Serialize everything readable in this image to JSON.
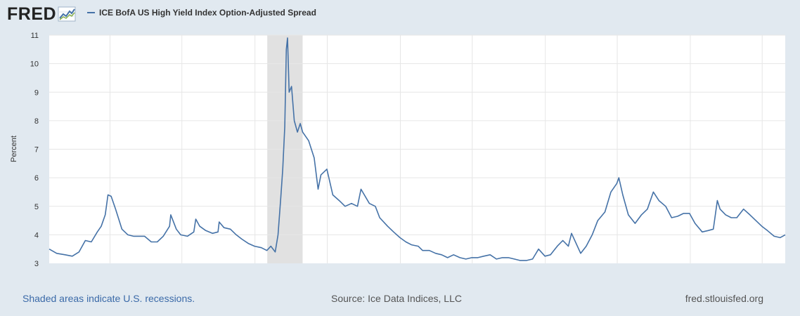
{
  "brand": {
    "logo_text": "FRED"
  },
  "footer": {
    "recession_note": "Shaded areas indicate U.S. recessions.",
    "source": "Source: Ice Data Indices, LLC",
    "site": "fred.stlouisfed.org"
  },
  "colors": {
    "line": "#4572a7",
    "recession": "#e1e1e1",
    "grid": "#e6e6e6",
    "background": "#e1e9f0"
  },
  "chart_data": {
    "type": "line",
    "title": "",
    "ylabel": "Percent",
    "xlabel": "",
    "ylim": [
      3,
      11
    ],
    "yticks": [
      3,
      4,
      5,
      6,
      7,
      8,
      9,
      10,
      11
    ],
    "xlim": [
      "2018-08-01",
      "2023-08-28"
    ],
    "xticks": [
      "2019-01",
      "2019-07",
      "2020-01",
      "2020-07",
      "2021-01",
      "2021-07",
      "2022-01",
      "2022-07",
      "2023-01",
      "2023-07"
    ],
    "grid": true,
    "legend_position": "top-left",
    "recessions": [
      [
        "2020-02-01",
        "2020-04-30"
      ]
    ],
    "series": [
      {
        "name": "ICE BofA US High Yield Index Option-Adjusted Spread",
        "x": [
          "2018-08-01",
          "2018-08-20",
          "2018-09-10",
          "2018-09-28",
          "2018-10-15",
          "2018-10-31",
          "2018-11-15",
          "2018-11-30",
          "2018-12-10",
          "2018-12-20",
          "2018-12-27",
          "2019-01-04",
          "2019-01-15",
          "2019-01-31",
          "2019-02-15",
          "2019-03-01",
          "2019-03-15",
          "2019-03-29",
          "2019-04-15",
          "2019-04-30",
          "2019-05-15",
          "2019-05-31",
          "2019-06-03",
          "2019-06-17",
          "2019-06-28",
          "2019-07-15",
          "2019-07-31",
          "2019-08-05",
          "2019-08-15",
          "2019-08-30",
          "2019-09-16",
          "2019-09-30",
          "2019-10-03",
          "2019-10-15",
          "2019-10-31",
          "2019-11-15",
          "2019-11-29",
          "2019-12-15",
          "2019-12-31",
          "2020-01-17",
          "2020-01-31",
          "2020-02-10",
          "2020-02-21",
          "2020-02-28",
          "2020-03-06",
          "2020-03-11",
          "2020-03-16",
          "2020-03-20",
          "2020-03-23",
          "2020-03-27",
          "2020-04-02",
          "2020-04-09",
          "2020-04-17",
          "2020-04-24",
          "2020-04-30",
          "2020-05-15",
          "2020-05-29",
          "2020-06-08",
          "2020-06-15",
          "2020-06-30",
          "2020-07-15",
          "2020-07-31",
          "2020-08-15",
          "2020-08-31",
          "2020-09-15",
          "2020-09-24",
          "2020-10-15",
          "2020-10-30",
          "2020-11-10",
          "2020-11-30",
          "2020-12-15",
          "2020-12-31",
          "2021-01-15",
          "2021-01-29",
          "2021-02-15",
          "2021-02-26",
          "2021-03-15",
          "2021-03-31",
          "2021-04-15",
          "2021-04-30",
          "2021-05-15",
          "2021-05-31",
          "2021-06-15",
          "2021-06-30",
          "2021-07-15",
          "2021-07-30",
          "2021-08-15",
          "2021-08-31",
          "2021-09-15",
          "2021-09-30",
          "2021-10-15",
          "2021-10-29",
          "2021-11-15",
          "2021-11-30",
          "2021-12-15",
          "2021-12-31",
          "2022-01-14",
          "2022-01-31",
          "2022-02-14",
          "2022-02-28",
          "2022-03-08",
          "2022-03-31",
          "2022-04-14",
          "2022-04-29",
          "2022-05-13",
          "2022-05-31",
          "2022-06-15",
          "2022-06-30",
          "2022-07-05",
          "2022-07-15",
          "2022-07-29",
          "2022-08-15",
          "2022-08-31",
          "2022-09-15",
          "2022-09-30",
          "2022-10-14",
          "2022-10-31",
          "2022-11-15",
          "2022-11-30",
          "2022-12-15",
          "2022-12-30",
          "2023-01-13",
          "2023-01-31",
          "2023-02-15",
          "2023-02-28",
          "2023-03-10",
          "2023-03-17",
          "2023-03-31",
          "2023-04-14",
          "2023-04-28",
          "2023-05-15",
          "2023-05-31",
          "2023-06-15",
          "2023-06-30",
          "2023-07-14",
          "2023-07-31",
          "2023-08-15",
          "2023-08-28"
        ],
        "y": [
          3.5,
          3.35,
          3.3,
          3.25,
          3.4,
          3.8,
          3.75,
          4.1,
          4.3,
          4.7,
          5.4,
          5.35,
          4.9,
          4.2,
          4.0,
          3.95,
          3.95,
          3.95,
          3.75,
          3.75,
          3.95,
          4.3,
          4.7,
          4.2,
          4.0,
          3.95,
          4.1,
          4.55,
          4.3,
          4.15,
          4.05,
          4.1,
          4.45,
          4.25,
          4.2,
          4.0,
          3.85,
          3.7,
          3.6,
          3.55,
          3.45,
          3.6,
          3.4,
          4.0,
          5.3,
          6.3,
          7.8,
          10.5,
          10.9,
          9.0,
          9.2,
          8.0,
          7.6,
          7.9,
          7.6,
          7.3,
          6.7,
          5.6,
          6.1,
          6.3,
          5.4,
          5.2,
          5.0,
          5.1,
          5.0,
          5.6,
          5.1,
          5.0,
          4.6,
          4.3,
          4.1,
          3.9,
          3.75,
          3.65,
          3.6,
          3.45,
          3.45,
          3.35,
          3.3,
          3.2,
          3.3,
          3.2,
          3.15,
          3.2,
          3.2,
          3.25,
          3.3,
          3.15,
          3.2,
          3.2,
          3.15,
          3.1,
          3.1,
          3.15,
          3.5,
          3.25,
          3.3,
          3.6,
          3.8,
          3.6,
          4.05,
          3.35,
          3.6,
          4.0,
          4.5,
          4.8,
          5.5,
          5.8,
          6.0,
          5.4,
          4.7,
          4.4,
          4.7,
          4.9,
          5.5,
          5.2,
          5.0,
          4.6,
          4.65,
          4.75,
          4.75,
          4.4,
          4.1,
          4.15,
          4.2,
          5.2,
          4.9,
          4.7,
          4.6,
          4.6,
          4.9,
          4.7,
          4.5,
          4.3,
          4.15,
          3.95,
          3.9,
          4.0
        ]
      }
    ]
  }
}
